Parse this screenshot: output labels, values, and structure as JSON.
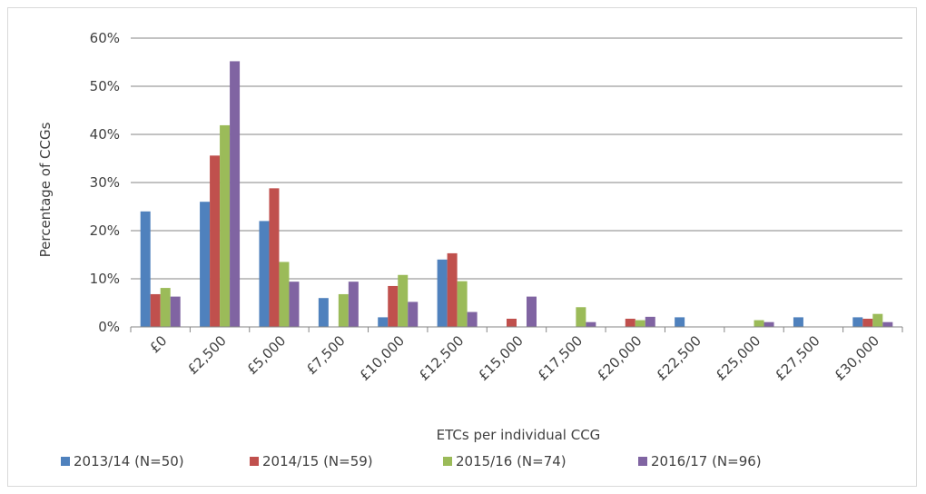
{
  "chart_data": {
    "type": "bar",
    "title": "",
    "xlabel": "ETCs per individual CCG",
    "ylabel": "Percentage of CCGs",
    "ylim": [
      0,
      60
    ],
    "yticks": [
      "0%",
      "10%",
      "20%",
      "30%",
      "40%",
      "50%",
      "60%"
    ],
    "grid": true,
    "legend_position": "bottom",
    "categories": [
      "£0",
      "£2,500",
      "£5,000",
      "£7,500",
      "£10,000",
      "£12,500",
      "£15,000",
      "£17,500",
      "£20,000",
      "£22,500",
      "£25,000",
      "£27,500",
      "£30,000"
    ],
    "series": [
      {
        "name": "2013/14 (N=50)",
        "color": "#4f81bd",
        "values": [
          24,
          26,
          22,
          6,
          2,
          14,
          0,
          0,
          0,
          2,
          0,
          2,
          2
        ]
      },
      {
        "name": "2014/15 (N=59)",
        "color": "#c0504d",
        "values": [
          6.8,
          35.6,
          28.8,
          0,
          8.5,
          15.3,
          1.7,
          0,
          1.7,
          0,
          0,
          0,
          1.7
        ]
      },
      {
        "name": "2015/16 (N=74)",
        "color": "#9bbb59",
        "values": [
          8.1,
          41.9,
          13.5,
          6.8,
          10.8,
          9.5,
          0,
          4.1,
          1.4,
          0,
          1.4,
          0,
          2.7
        ]
      },
      {
        "name": "2016/17 (N=96)",
        "color": "#8064a2",
        "values": [
          6.3,
          55.2,
          9.4,
          9.4,
          5.2,
          3.1,
          6.3,
          1.0,
          2.1,
          0,
          1.0,
          0,
          1.0
        ]
      }
    ]
  }
}
